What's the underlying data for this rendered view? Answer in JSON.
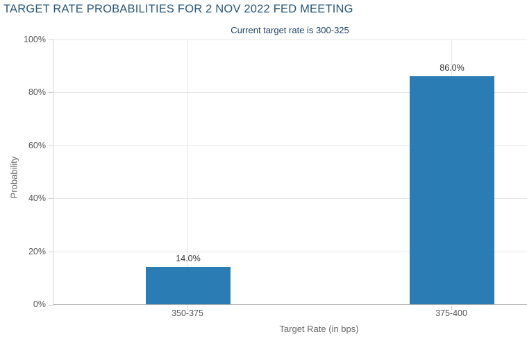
{
  "chart_data": {
    "type": "bar",
    "title": "TARGET RATE PROBABILITIES FOR 2 NOV 2022 FED MEETING",
    "subtitle": "Current target rate is 300-325",
    "categories": [
      "350-375",
      "375-400"
    ],
    "values": [
      14.0,
      86.0
    ],
    "value_labels": [
      "14.0%",
      "86.0%"
    ],
    "xlabel": "Target Rate (in bps)",
    "ylabel": "Probability",
    "ylim": [
      0,
      100
    ],
    "yticks_top_to_bottom": [
      "100%",
      "80%",
      "60%",
      "40%",
      "20%",
      "0%"
    ],
    "grid": true,
    "legend": "none",
    "colors": {
      "bar": "#2a7cb4",
      "title": "#26567c",
      "subtitle": "#1c4266",
      "tick_label": "#555555",
      "axis_title": "#666666",
      "gridline": "#e6e6e6",
      "axis_line": "#b0b0b0"
    }
  }
}
